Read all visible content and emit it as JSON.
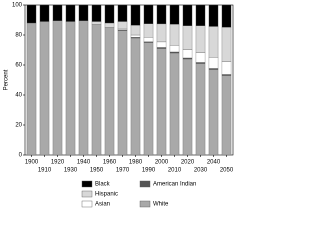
{
  "chart_data": {
    "type": "bar",
    "stacked": true,
    "ylabel": "Percent",
    "categories": [
      "1900",
      "1910",
      "1920",
      "1930",
      "1940",
      "1950",
      "1960",
      "1970",
      "1980",
      "1990",
      "2000",
      "2010",
      "2020",
      "2030",
      "2040",
      "2050"
    ],
    "series": [
      {
        "name": "White",
        "color": "#a9a9a9",
        "values": [
          88,
          89,
          89.5,
          89,
          89.5,
          87,
          85,
          83,
          78,
          75,
          71,
          68,
          64,
          61,
          57,
          53
        ]
      },
      {
        "name": "American Indian",
        "color": "#555555",
        "values": [
          0,
          0,
          0,
          0,
          0,
          0,
          0,
          0.5,
          0.5,
          0.5,
          0.7,
          0.7,
          0.7,
          0.7,
          0.7,
          0.7
        ]
      },
      {
        "name": "Asian",
        "color": "#ffffff",
        "values": [
          0,
          0,
          0,
          0,
          0,
          0,
          0,
          1,
          1.5,
          3,
          3.7,
          4.5,
          5.5,
          6.5,
          7.5,
          8.5
        ]
      },
      {
        "name": "Hispanic",
        "color": "#d8d8d8",
        "values": [
          0,
          0,
          0,
          0,
          0,
          2,
          3,
          4.5,
          6.5,
          9,
          12,
          14,
          16,
          18,
          20.5,
          23
        ]
      },
      {
        "name": "Black",
        "color": "#000000",
        "values": [
          12,
          11,
          10.5,
          11,
          10.5,
          11,
          12,
          11,
          13.5,
          12.5,
          12.6,
          12.8,
          13.8,
          13.8,
          14.3,
          14.8
        ]
      }
    ],
    "ylim": [
      0,
      100
    ],
    "yticks": [
      0,
      20,
      40,
      60,
      80,
      100
    ]
  }
}
